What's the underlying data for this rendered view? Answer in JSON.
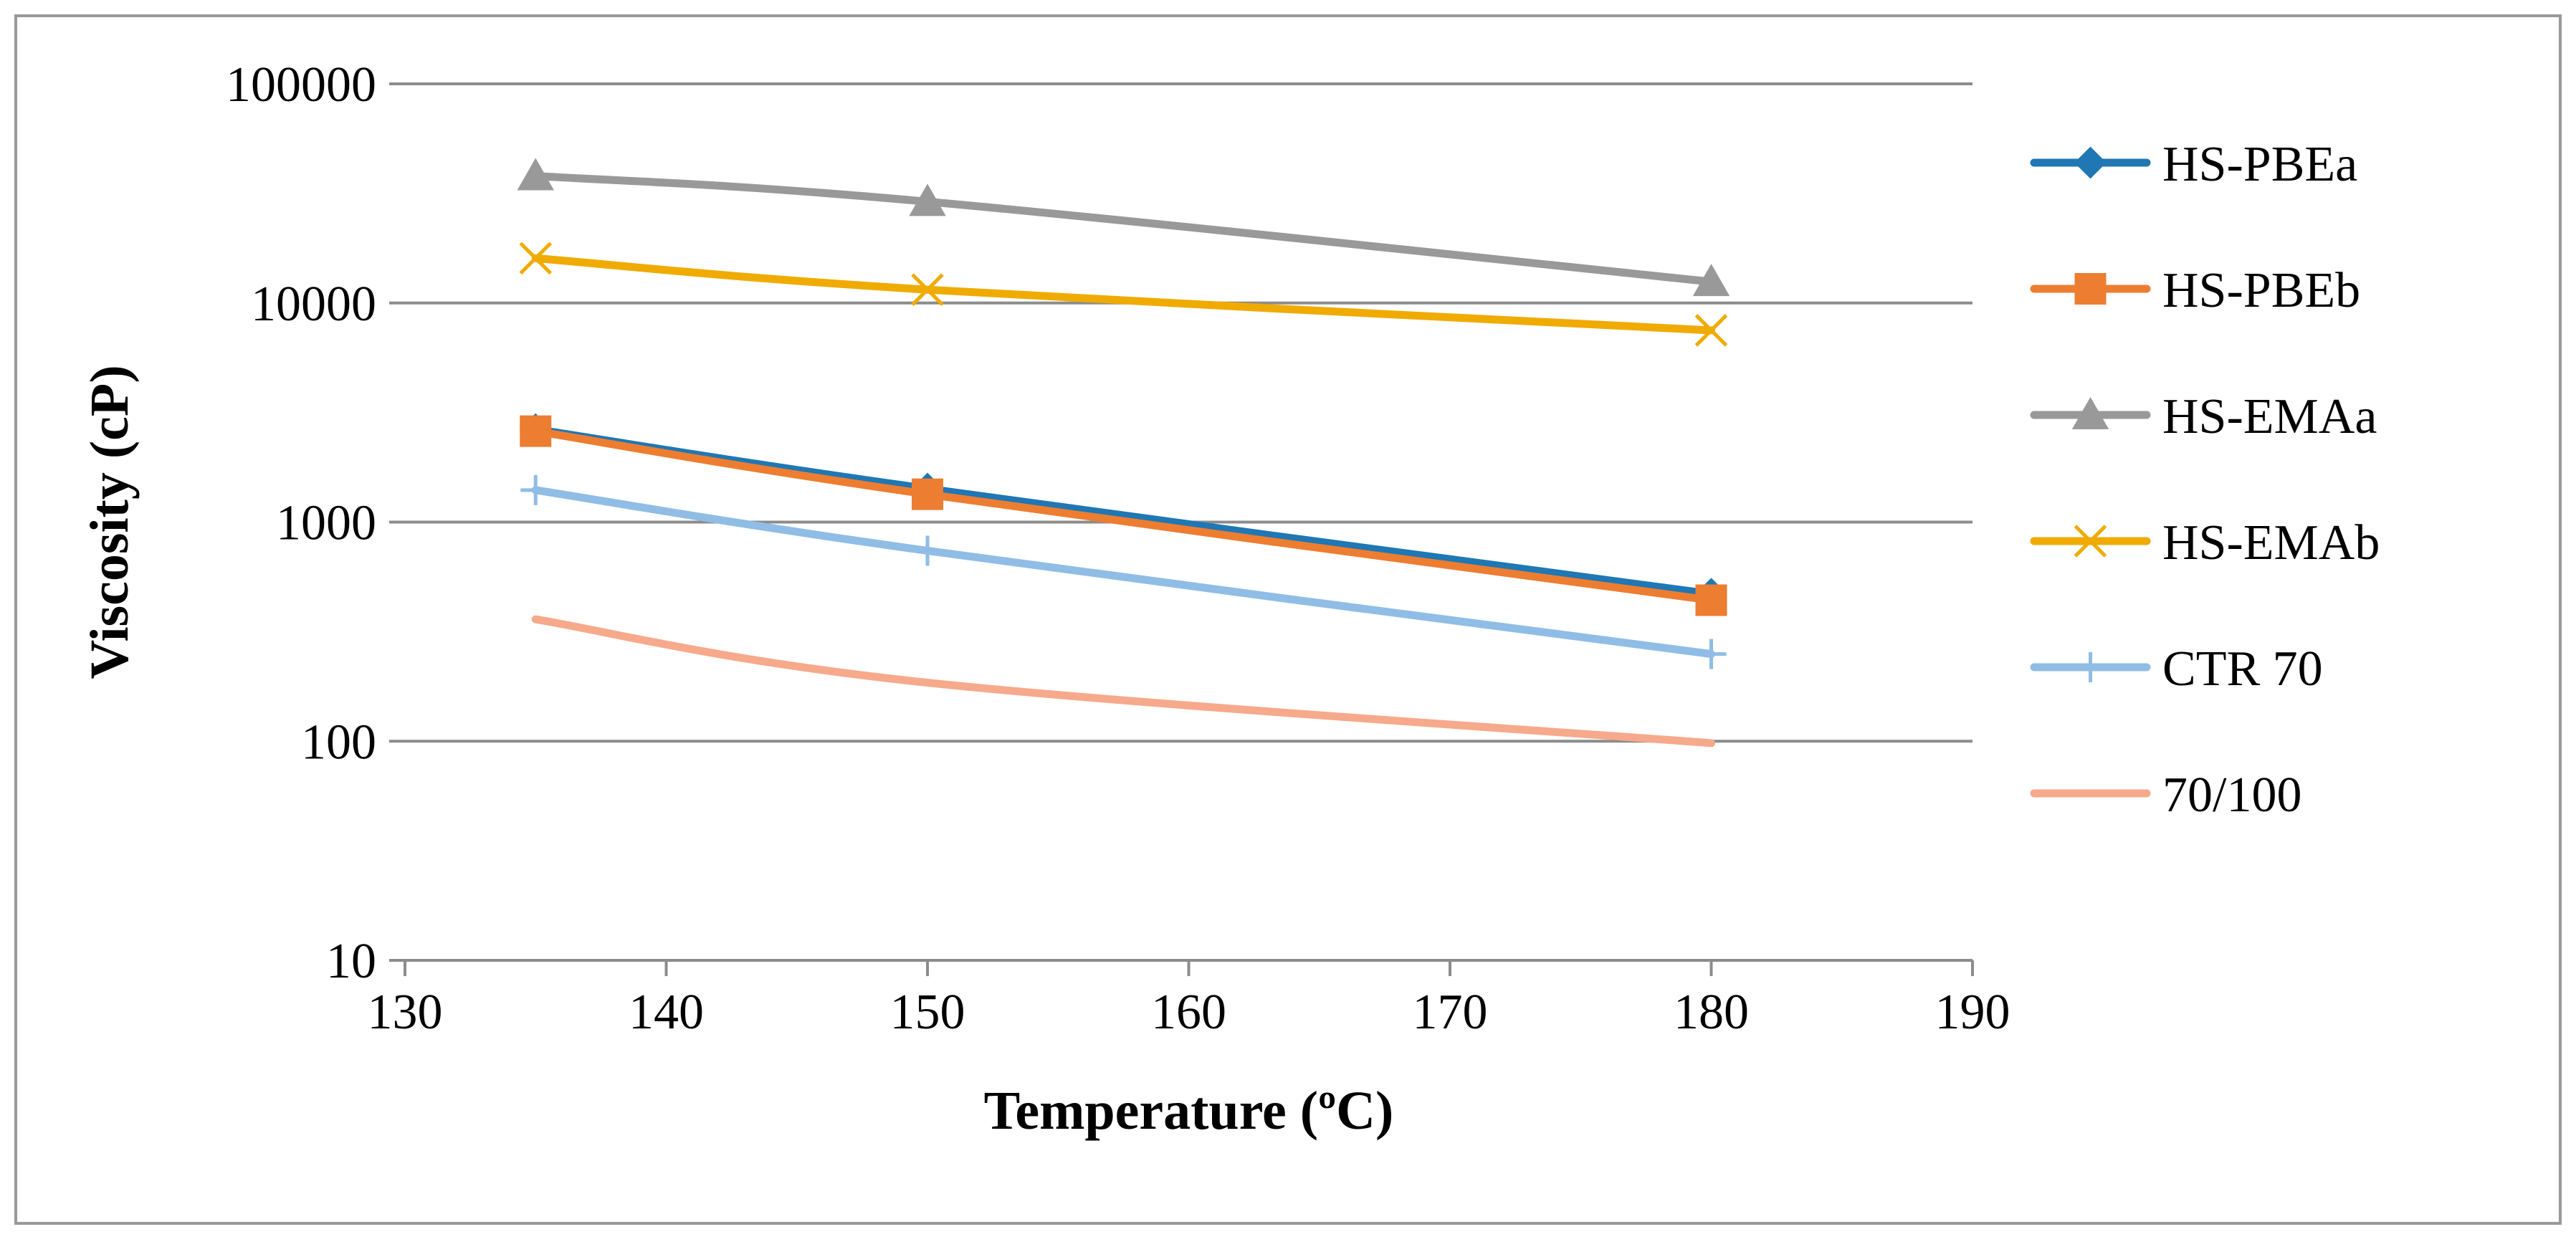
{
  "chart_data": {
    "type": "line",
    "title": "",
    "xlabel": "Temperature (ºC)",
    "ylabel": "Viscosity (cP)",
    "x_axis": {
      "min": 130,
      "max": 190,
      "step": 10,
      "tick_labels": [
        "130",
        "140",
        "150",
        "160",
        "170",
        "180",
        "190"
      ]
    },
    "y_axis": {
      "scale": "log",
      "min": 10,
      "max": 100000,
      "tick_values": [
        10,
        100,
        1000,
        10000,
        100000
      ],
      "tick_labels": [
        "10",
        "100",
        "1000",
        "10000",
        "100000"
      ]
    },
    "grid": "horizontal",
    "legend_position": "right",
    "series": [
      {
        "name": "HS-PBEa",
        "color": "#1f77b4",
        "marker": "diamond",
        "x": [
          135,
          150,
          180
        ],
        "values": [
          2650,
          1420,
          470
        ]
      },
      {
        "name": "HS-PBEb",
        "color": "#ed7d31",
        "marker": "square",
        "x": [
          135,
          150,
          180
        ],
        "values": [
          2600,
          1340,
          440
        ]
      },
      {
        "name": "HS-EMAa",
        "color": "#999999",
        "marker": "triangle",
        "x": [
          135,
          150,
          180
        ],
        "values": [
          38000,
          29000,
          12500
        ]
      },
      {
        "name": "HS-EMAb",
        "color": "#f0ab00",
        "marker": "x",
        "x": [
          135,
          150,
          180
        ],
        "values": [
          16000,
          11500,
          7500
        ]
      },
      {
        "name": "CTR 70",
        "color": "#8fbde6",
        "marker": "plus",
        "x": [
          135,
          150,
          180
        ],
        "values": [
          1400,
          740,
          250
        ]
      },
      {
        "name": "70/100",
        "color": "#f7a98b",
        "marker": "none",
        "x": [
          135,
          150,
          180
        ],
        "values": [
          360,
          185,
          98
        ]
      }
    ]
  }
}
